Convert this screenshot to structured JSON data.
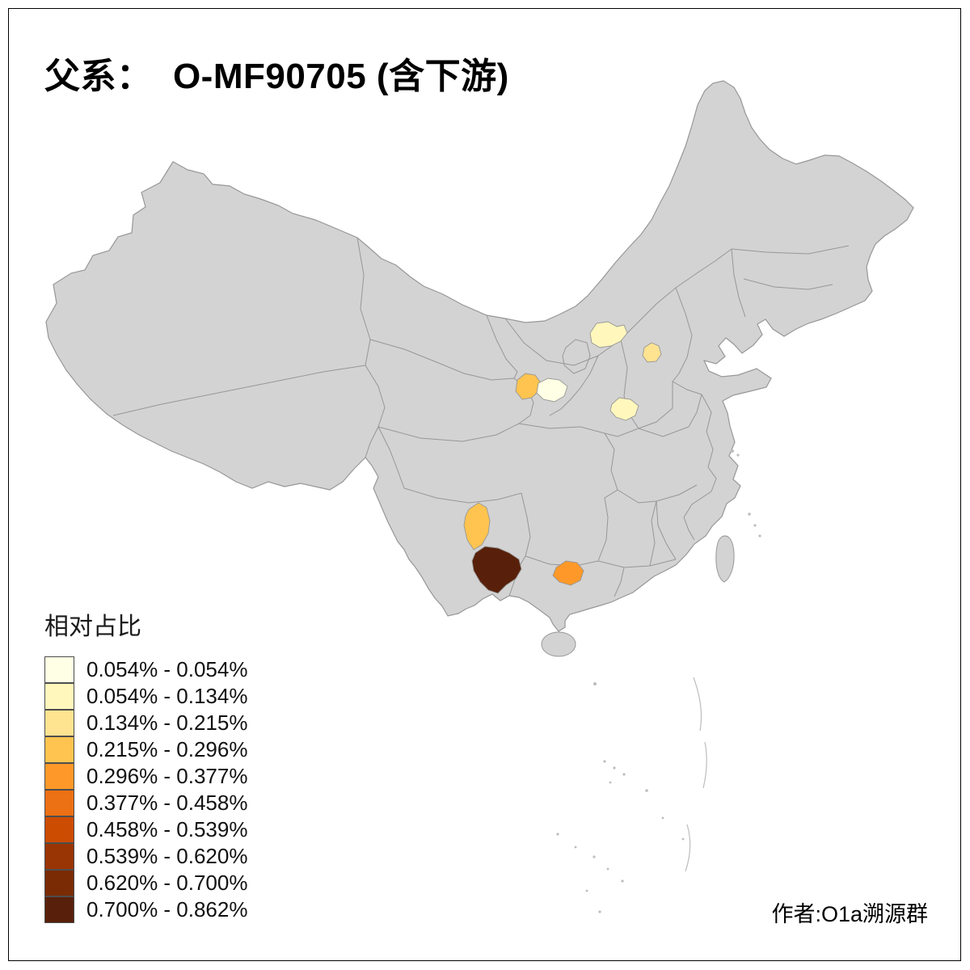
{
  "title": "父系：  O-MF90705 (含下游)",
  "legend": {
    "title": "相对占比",
    "items": [
      {
        "label": "0.054% - 0.054%",
        "color": "#FFFFE5"
      },
      {
        "label": "0.054% - 0.134%",
        "color": "#FFF7BC"
      },
      {
        "label": "0.134% - 0.215%",
        "color": "#FEE391"
      },
      {
        "label": "0.215% - 0.296%",
        "color": "#FEC44F"
      },
      {
        "label": "0.296% - 0.377%",
        "color": "#FE9929"
      },
      {
        "label": "0.377% - 0.458%",
        "color": "#EC7014"
      },
      {
        "label": "0.458% - 0.539%",
        "color": "#CC4C02"
      },
      {
        "label": "0.539% - 0.620%",
        "color": "#993404"
      },
      {
        "label": "0.620% - 0.700%",
        "color": "#7A2B04"
      },
      {
        "label": "0.700% - 0.862%",
        "color": "#58200A"
      }
    ]
  },
  "credit": "作者:O1a溯源群",
  "map": {
    "land_color": "#D3D3D3",
    "border_color": "#979797",
    "island_color": "#BDBDBD",
    "sea_color": "#FFFFFF",
    "highlighted_regions": [
      {
        "id": "north-central-blob",
        "color": "#FFF7BC",
        "range": "0.054% - 0.134%"
      },
      {
        "id": "shanxi-blob",
        "color": "#FEE391",
        "range": "0.134% - 0.215%"
      },
      {
        "id": "gansu-west-blob",
        "color": "#FEC44F",
        "range": "0.215% - 0.296%"
      },
      {
        "id": "gansu-east-blob",
        "color": "#FFFFE5",
        "range": "0.054% - 0.054%"
      },
      {
        "id": "shaanxi-south-blob",
        "color": "#FFF7BC",
        "range": "0.054% - 0.134%"
      },
      {
        "id": "yunnan-central-blob",
        "color": "#FEC44F",
        "range": "0.215% - 0.296%"
      },
      {
        "id": "yunnan-south-blob",
        "color": "#58200A",
        "range": "0.700% - 0.862%"
      },
      {
        "id": "guangxi-central-blob",
        "color": "#FE9929",
        "range": "0.296% - 0.377%"
      }
    ]
  }
}
